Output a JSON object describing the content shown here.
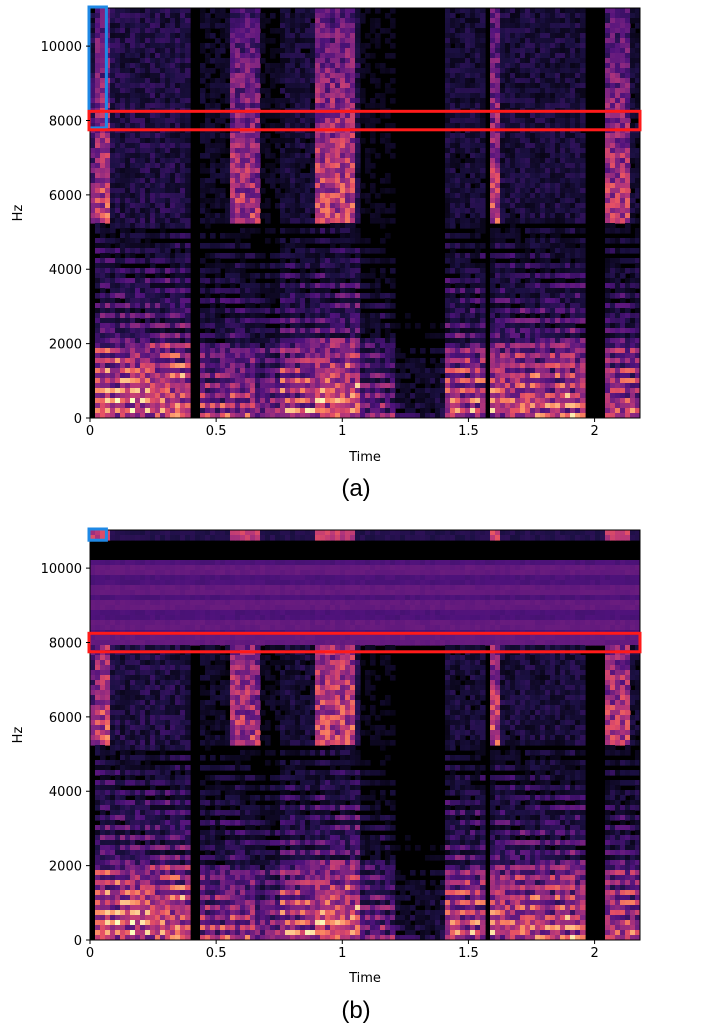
{
  "chart_data": [
    {
      "type": "heatmap",
      "title": "",
      "caption": "(a)",
      "xlabel": "Time",
      "ylabel": "Hz",
      "xlim": [
        0,
        2.18
      ],
      "ylim": [
        0,
        11025
      ],
      "xticks": [
        0,
        0.5,
        1,
        1.5,
        2
      ],
      "xtick_labels": [
        "0",
        "0.5",
        "1",
        "1.5",
        "2"
      ],
      "yticks": [
        0,
        2000,
        4000,
        6000,
        8000,
        10000
      ],
      "ytick_labels": [
        "0",
        "2000",
        "4000",
        "6000",
        "8000",
        "10000"
      ],
      "colormap": "magma",
      "highlights": [
        {
          "color": "#1e88e5",
          "x": [
            0,
            0.065
          ],
          "y": [
            7800,
            11025
          ]
        },
        {
          "color": "#ff1a1a",
          "x": [
            0,
            2.18
          ],
          "y": [
            7750,
            8220
          ]
        }
      ]
    },
    {
      "type": "heatmap",
      "title": "",
      "caption": "(b)",
      "xlabel": "Time",
      "ylabel": "Hz",
      "xlim": [
        0,
        2.18
      ],
      "ylim": [
        0,
        11025
      ],
      "xticks": [
        0,
        0.5,
        1,
        1.5,
        2
      ],
      "xtick_labels": [
        "0",
        "0.5",
        "1",
        "1.5",
        "2"
      ],
      "yticks": [
        0,
        2000,
        4000,
        6000,
        8000,
        10000
      ],
      "ytick_labels": [
        "0",
        "2000",
        "4000",
        "6000",
        "8000",
        "10000"
      ],
      "colormap": "magma",
      "highlights": [
        {
          "color": "#1e88e5",
          "x": [
            0,
            0.065
          ],
          "y": [
            10750,
            11025
          ]
        },
        {
          "color": "#ff1a1a",
          "x": [
            0,
            2.18
          ],
          "y": [
            7750,
            8220
          ]
        }
      ]
    }
  ],
  "colors": {
    "background": "#000000",
    "highlight_blue": "#1e88e5",
    "highlight_red": "#ff1a1a"
  }
}
